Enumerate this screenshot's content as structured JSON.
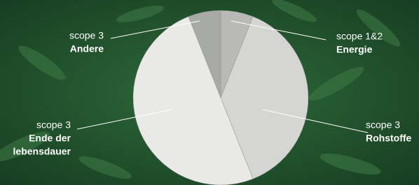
{
  "chart_data": {
    "type": "pie",
    "categories": [
      [
        "scope 1&2",
        "Energie"
      ],
      [
        "scope 3",
        "Rohstoffe"
      ],
      [
        "scope 3",
        "Ende der",
        "lebensdauer"
      ],
      [
        "scope 3",
        "Andere"
      ]
    ],
    "values": [
      6,
      38,
      50,
      6
    ],
    "colors": [
      "#b9bab7",
      "#d5d6d4",
      "#e9eae7",
      "#a8aaa7"
    ]
  }
}
